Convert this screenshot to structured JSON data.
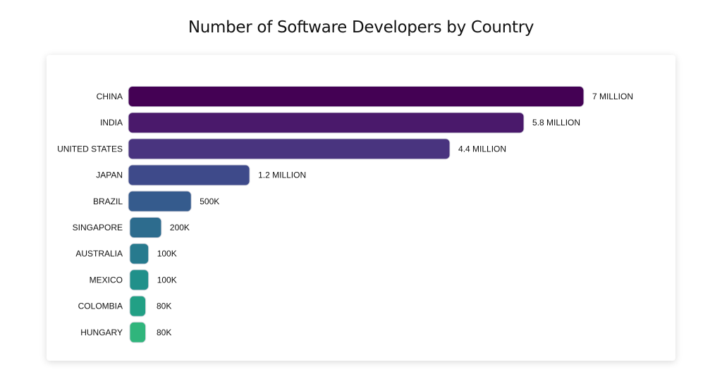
{
  "chart_data": {
    "type": "bar",
    "orientation": "horizontal",
    "title": "Number of Software Developers by Country",
    "categories": [
      "CHINA",
      "INDIA",
      "UNITED STATES",
      "JAPAN",
      "BRAZIL",
      "SINGAPORE",
      "AUSTRALIA",
      "MEXICO",
      "COLOMBIA",
      "HUNGARY"
    ],
    "values": [
      7000000,
      5800000,
      4400000,
      1200000,
      500000,
      200000,
      100000,
      100000,
      80000,
      80000
    ],
    "data_labels": [
      "7 MILLION",
      "5.8 MILLION",
      "4.4 MILLION",
      "1.2 MILLION",
      "500K",
      "200K",
      "100K",
      "100K",
      "80K",
      "80K"
    ],
    "colors": [
      "#440154",
      "#4a196b",
      "#49347f",
      "#3e4a8a",
      "#355b8d",
      "#2d6c8e",
      "#277a8e",
      "#20908a",
      "#22a085",
      "#30b57c"
    ],
    "grid": false,
    "legend": "none"
  }
}
